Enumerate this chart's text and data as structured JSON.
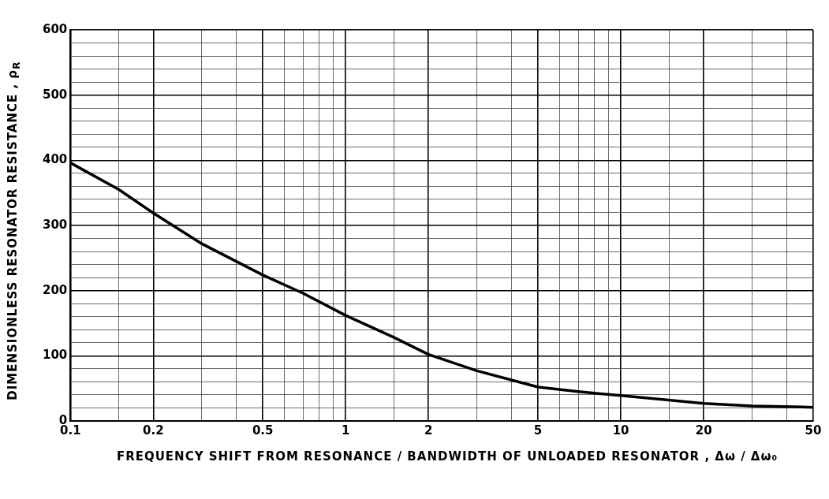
{
  "chart_data": {
    "type": "line",
    "xlabel": "FREQUENCY SHIFT FROM RESONANCE / BANDWIDTH OF UNLOADED RESONATOR , Δω / Δω₀",
    "ylabel": "DIMENSIONLESS RESONATOR RESISTANCE , ρ$_{R}$",
    "series": [
      {
        "color": "#000000",
        "x": [
          0.1,
          0.15,
          0.2,
          0.3,
          0.5,
          0.7,
          1,
          1.5,
          2,
          3,
          5,
          7,
          10,
          20,
          30,
          50
        ],
        "values": [
          396,
          355,
          319,
          272,
          224,
          196,
          162,
          128,
          102,
          77,
          52,
          45,
          39,
          27,
          23,
          21
        ]
      }
    ],
    "log": "x",
    "xlim": [
      0.1,
      50
    ],
    "ylim": [
      0,
      600
    ],
    "xticks": [
      0.1,
      {
        "value": 0.15,
        "label": null
      },
      0.2,
      {
        "value": 0.3,
        "label": null
      },
      {
        "value": 0.4,
        "label": null
      },
      0.5,
      {
        "value": 0.6,
        "label": null
      },
      {
        "value": 0.7,
        "label": null
      },
      {
        "value": 0.8,
        "label": null
      },
      {
        "value": 0.9,
        "label": null
      },
      1,
      {
        "value": 1.5,
        "label": null
      },
      2,
      {
        "value": 3,
        "label": null
      },
      {
        "value": 4,
        "label": null
      },
      5,
      {
        "value": 6,
        "label": null
      },
      {
        "value": 7,
        "label": null
      },
      {
        "value": 8,
        "label": null
      },
      {
        "value": 9,
        "label": null
      },
      10,
      {
        "value": 15,
        "label": null
      },
      20,
      {
        "value": 30,
        "label": null
      },
      {
        "value": 40,
        "label": null
      },
      50
    ],
    "yticks": [
      0,
      {
        "value": 20,
        "label": null
      },
      {
        "value": 40,
        "label": null
      },
      {
        "value": 60,
        "label": null
      },
      {
        "value": 80,
        "label": null
      },
      100,
      {
        "value": 120,
        "label": null
      },
      {
        "value": 140,
        "label": null
      },
      {
        "value": 160,
        "label": null
      },
      {
        "value": 180,
        "label": null
      },
      200,
      {
        "value": 220,
        "label": null
      },
      {
        "value": 240,
        "label": null
      },
      {
        "value": 260,
        "label": null
      },
      {
        "value": 280,
        "label": null
      },
      300,
      {
        "value": 320,
        "label": null
      },
      {
        "value": 340,
        "label": null
      },
      {
        "value": 360,
        "label": null
      },
      {
        "value": 380,
        "label": null
      },
      400,
      {
        "value": 420,
        "label": null
      },
      {
        "value": 440,
        "label": null
      },
      {
        "value": 460,
        "label": null
      },
      {
        "value": 480,
        "label": null
      },
      500,
      {
        "value": 520,
        "label": null
      },
      {
        "value": 540,
        "label": null
      },
      {
        "value": 560,
        "label": null
      },
      {
        "value": 580,
        "label": null
      },
      600
    ],
    "grid": true,
    "legend": false,
    "marker": "none",
    "line_style": "solid"
  }
}
